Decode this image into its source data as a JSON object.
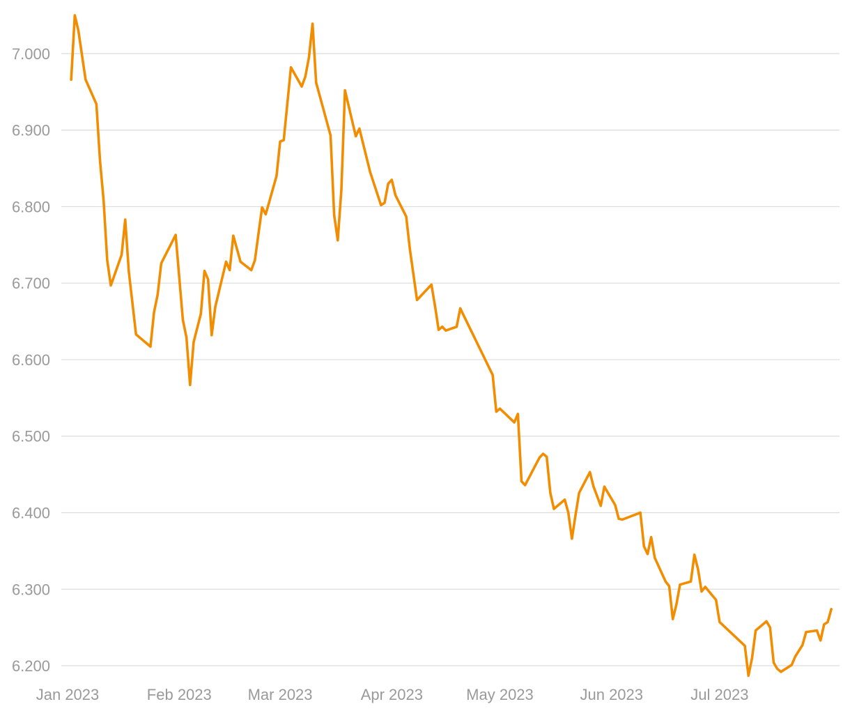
{
  "colors": {
    "series": "#F28C00",
    "grid": "#dcdcdc",
    "tick_text": "#9a9a9a",
    "background": "#ffffff"
  },
  "chart_data": {
    "type": "line",
    "title": "",
    "xlabel": "",
    "ylabel": "",
    "grid": true,
    "legend": "none",
    "ylim": [
      6.19,
      7.05
    ],
    "xlim": [
      "2023-01-01",
      "2023-07-31"
    ],
    "y_ticks": [
      {
        "value": 6.2,
        "label": "6.200"
      },
      {
        "value": 6.3,
        "label": "6.300"
      },
      {
        "value": 6.4,
        "label": "6.400"
      },
      {
        "value": 6.5,
        "label": "6.500"
      },
      {
        "value": 6.6,
        "label": "6.600"
      },
      {
        "value": 6.7,
        "label": "6.700"
      },
      {
        "value": 6.8,
        "label": "6.800"
      },
      {
        "value": 6.9,
        "label": "6.900"
      },
      {
        "value": 7.0,
        "label": "7.000"
      }
    ],
    "x_ticks": [
      {
        "value": "2023-01-01",
        "label": "Jan 2023"
      },
      {
        "value": "2023-02-01",
        "label": "Feb 2023"
      },
      {
        "value": "2023-03-01",
        "label": "Mar 2023"
      },
      {
        "value": "2023-04-01",
        "label": "Apr 2023"
      },
      {
        "value": "2023-05-01",
        "label": "May 2023"
      },
      {
        "value": "2023-06-01",
        "label": "Jun 2023"
      },
      {
        "value": "2023-07-01",
        "label": "Jul 2023"
      }
    ],
    "series": [
      {
        "color": "#F28C00",
        "points": [
          [
            "2023-01-02",
            6.966
          ],
          [
            "2023-01-03",
            7.05
          ],
          [
            "2023-01-04",
            7.03
          ],
          [
            "2023-01-06",
            6.966
          ],
          [
            "2023-01-09",
            6.934
          ],
          [
            "2023-01-10",
            6.86
          ],
          [
            "2023-01-11",
            6.808
          ],
          [
            "2023-01-12",
            6.73
          ],
          [
            "2023-01-13",
            6.697
          ],
          [
            "2023-01-16",
            6.737
          ],
          [
            "2023-01-17",
            6.783
          ],
          [
            "2023-01-18",
            6.715
          ],
          [
            "2023-01-20",
            6.633
          ],
          [
            "2023-01-24",
            6.617
          ],
          [
            "2023-01-25",
            6.662
          ],
          [
            "2023-01-26",
            6.685
          ],
          [
            "2023-01-27",
            6.726
          ],
          [
            "2023-01-31",
            6.763
          ],
          [
            "2023-02-02",
            6.652
          ],
          [
            "2023-02-03",
            6.629
          ],
          [
            "2023-02-04",
            6.567
          ],
          [
            "2023-02-05",
            6.623
          ],
          [
            "2023-02-07",
            6.66
          ],
          [
            "2023-02-08",
            6.716
          ],
          [
            "2023-02-09",
            6.705
          ],
          [
            "2023-02-10",
            6.632
          ],
          [
            "2023-02-11",
            6.669
          ],
          [
            "2023-02-14",
            6.728
          ],
          [
            "2023-02-15",
            6.717
          ],
          [
            "2023-02-16",
            6.762
          ],
          [
            "2023-02-18",
            6.728
          ],
          [
            "2023-02-21",
            6.717
          ],
          [
            "2023-02-22",
            6.73
          ],
          [
            "2023-02-23",
            6.765
          ],
          [
            "2023-02-24",
            6.799
          ],
          [
            "2023-02-25",
            6.79
          ],
          [
            "2023-02-28",
            6.84
          ],
          [
            "2023-03-01",
            6.885
          ],
          [
            "2023-03-02",
            6.887
          ],
          [
            "2023-03-04",
            6.982
          ],
          [
            "2023-03-07",
            6.957
          ],
          [
            "2023-03-08",
            6.97
          ],
          [
            "2023-03-09",
            6.995
          ],
          [
            "2023-03-10",
            7.039
          ],
          [
            "2023-03-11",
            6.962
          ],
          [
            "2023-03-15",
            6.893
          ],
          [
            "2023-03-16",
            6.789
          ],
          [
            "2023-03-17",
            6.756
          ],
          [
            "2023-03-18",
            6.822
          ],
          [
            "2023-03-19",
            6.952
          ],
          [
            "2023-03-22",
            6.892
          ],
          [
            "2023-03-23",
            6.902
          ],
          [
            "2023-03-26",
            6.845
          ],
          [
            "2023-03-29",
            6.802
          ],
          [
            "2023-03-30",
            6.805
          ],
          [
            "2023-03-31",
            6.83
          ],
          [
            "2023-04-01",
            6.835
          ],
          [
            "2023-04-02",
            6.815
          ],
          [
            "2023-04-05",
            6.787
          ],
          [
            "2023-04-06",
            6.745
          ],
          [
            "2023-04-08",
            6.678
          ],
          [
            "2023-04-12",
            6.698
          ],
          [
            "2023-04-13",
            6.67
          ],
          [
            "2023-04-14",
            6.639
          ],
          [
            "2023-04-15",
            6.643
          ],
          [
            "2023-04-16",
            6.638
          ],
          [
            "2023-04-19",
            6.643
          ],
          [
            "2023-04-20",
            6.667
          ],
          [
            "2023-04-29",
            6.58
          ],
          [
            "2023-04-30",
            6.532
          ],
          [
            "2023-05-01",
            6.536
          ],
          [
            "2023-05-05",
            6.518
          ],
          [
            "2023-05-06",
            6.529
          ],
          [
            "2023-05-07",
            6.441
          ],
          [
            "2023-05-08",
            6.436
          ],
          [
            "2023-05-12",
            6.472
          ],
          [
            "2023-05-13",
            6.477
          ],
          [
            "2023-05-14",
            6.473
          ],
          [
            "2023-05-15",
            6.426
          ],
          [
            "2023-05-16",
            6.405
          ],
          [
            "2023-05-19",
            6.417
          ],
          [
            "2023-05-20",
            6.4
          ],
          [
            "2023-05-21",
            6.366
          ],
          [
            "2023-05-22",
            6.397
          ],
          [
            "2023-05-23",
            6.426
          ],
          [
            "2023-05-26",
            6.453
          ],
          [
            "2023-05-27",
            6.434
          ],
          [
            "2023-05-29",
            6.409
          ],
          [
            "2023-05-30",
            6.434
          ],
          [
            "2023-06-02",
            6.41
          ],
          [
            "2023-06-03",
            6.392
          ],
          [
            "2023-06-04",
            6.391
          ],
          [
            "2023-06-09",
            6.4
          ],
          [
            "2023-06-10",
            6.356
          ],
          [
            "2023-06-11",
            6.346
          ],
          [
            "2023-06-12",
            6.368
          ],
          [
            "2023-06-13",
            6.341
          ],
          [
            "2023-06-16",
            6.31
          ],
          [
            "2023-06-17",
            6.304
          ],
          [
            "2023-06-18",
            6.261
          ],
          [
            "2023-06-19",
            6.28
          ],
          [
            "2023-06-20",
            6.306
          ],
          [
            "2023-06-23",
            6.31
          ],
          [
            "2023-06-24",
            6.345
          ],
          [
            "2023-06-25",
            6.326
          ],
          [
            "2023-06-26",
            6.297
          ],
          [
            "2023-06-27",
            6.303
          ],
          [
            "2023-06-30",
            6.286
          ],
          [
            "2023-07-01",
            6.257
          ],
          [
            "2023-07-08",
            6.226
          ],
          [
            "2023-07-09",
            6.187
          ],
          [
            "2023-07-10",
            6.21
          ],
          [
            "2023-07-11",
            6.246
          ],
          [
            "2023-07-14",
            6.258
          ],
          [
            "2023-07-15",
            6.25
          ],
          [
            "2023-07-16",
            6.204
          ],
          [
            "2023-07-17",
            6.196
          ],
          [
            "2023-07-18",
            6.192
          ],
          [
            "2023-07-21",
            6.201
          ],
          [
            "2023-07-22",
            6.212
          ],
          [
            "2023-07-24",
            6.227
          ],
          [
            "2023-07-25",
            6.244
          ],
          [
            "2023-07-28",
            6.246
          ],
          [
            "2023-07-29",
            6.233
          ],
          [
            "2023-07-30",
            6.254
          ],
          [
            "2023-07-31",
            6.257
          ],
          [
            "2023-08-01",
            6.274
          ]
        ]
      }
    ]
  }
}
